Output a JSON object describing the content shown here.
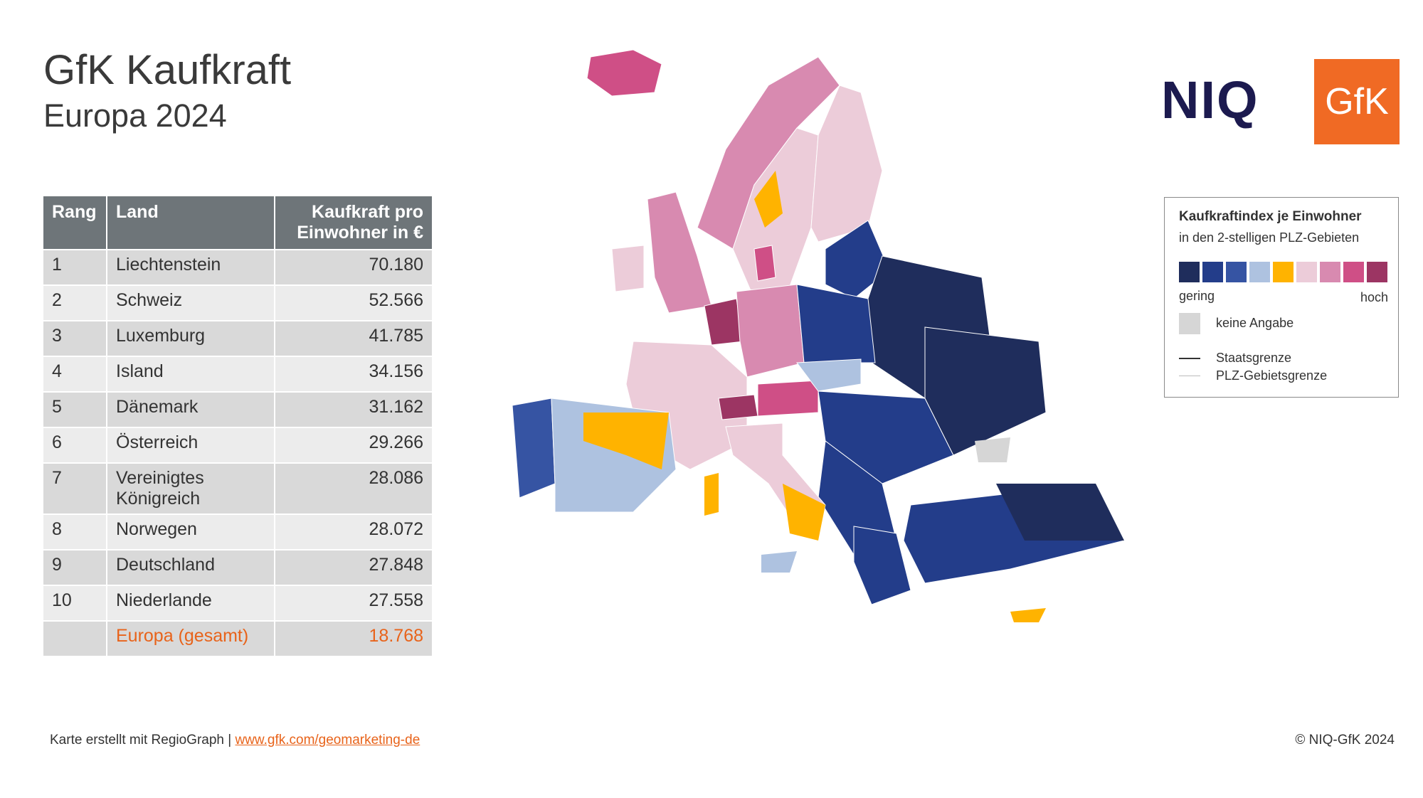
{
  "header": {
    "title": "GfK Kaufkraft",
    "subtitle": "Europa 2024"
  },
  "table": {
    "columns": [
      "Rang",
      "Land",
      "Kaufkraft pro Einwohner in €"
    ],
    "rows": [
      {
        "rank": "1",
        "country": "Liechtenstein",
        "value": "70.180"
      },
      {
        "rank": "2",
        "country": "Schweiz",
        "value": "52.566"
      },
      {
        "rank": "3",
        "country": "Luxemburg",
        "value": "41.785"
      },
      {
        "rank": "4",
        "country": "Island",
        "value": "34.156"
      },
      {
        "rank": "5",
        "country": "Dänemark",
        "value": "31.162"
      },
      {
        "rank": "6",
        "country": "Österreich",
        "value": "29.266"
      },
      {
        "rank": "7",
        "country": "Vereinigtes Königreich",
        "value": "28.086"
      },
      {
        "rank": "8",
        "country": "Norwegen",
        "value": "28.072"
      },
      {
        "rank": "9",
        "country": "Deutschland",
        "value": "27.848"
      },
      {
        "rank": "10",
        "country": "Niederlande",
        "value": "27.558"
      }
    ],
    "total": {
      "rank": "",
      "country": "Europa (gesamt)",
      "value": "18.768"
    }
  },
  "logos": {
    "niq": "NIQ",
    "gfk": "GfK"
  },
  "legend": {
    "title": "Kaufkraftindex je Einwohner",
    "subtitle": "in den 2-stelligen PLZ-Gebieten",
    "low": "gering",
    "high": "hoch",
    "no_data": "keine Angabe",
    "state_border": "Staatsgrenze",
    "plz_border": "PLZ-Gebietsgrenze",
    "colors": [
      "#1f2d5c",
      "#233d8a",
      "#3654a3",
      "#aec2e0",
      "#ffb300",
      "#ecccd9",
      "#d88ab0",
      "#cf4f86",
      "#9c3563"
    ]
  },
  "footer": {
    "source": "Karte erstellt mit RegioGraph | ",
    "link": "www.gfk.com/geomarketing-de",
    "copyright": "© NIQ-GfK 2024"
  }
}
